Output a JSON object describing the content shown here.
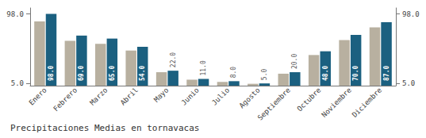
{
  "chart_data": {
    "type": "bar",
    "title": "Precipitaciones Medias en tornavacas",
    "categories": [
      "Enero",
      "Febrero",
      "Marzo",
      "Abril",
      "Mayo",
      "Junio",
      "Julio",
      "Agosto",
      "Septiembre",
      "Octubre",
      "Noviembre",
      "Diciembre"
    ],
    "series": [
      {
        "color": "#b8b0a0",
        "values": [
          88.0,
          62.0,
          58.0,
          49.0,
          20.0,
          10.0,
          7.0,
          4.5,
          18.0,
          43.0,
          63.0,
          80.0
        ]
      },
      {
        "color": "#1b6080",
        "values": [
          98.0,
          69.0,
          65.0,
          54.0,
          22.0,
          11.0,
          8.0,
          5.0,
          20.0,
          48.0,
          70.0,
          87.0
        ],
        "data_labels": true,
        "value_labels": [
          "98.0",
          "69.0",
          "65.0",
          "54.0",
          "22.0",
          "11.0",
          "8.0",
          "5.0",
          "20.0",
          "48.0",
          "70.0",
          "87.0"
        ]
      }
    ],
    "ylim": [
      2.0,
      106.0
    ],
    "yticks": [
      {
        "value": 5.0,
        "label": "5.0"
      },
      {
        "value": 98.0,
        "label": "98.0"
      }
    ],
    "y2lim": [
      2.0,
      106.0
    ],
    "y2ticks": [
      {
        "value": 5.0,
        "label": "5.0"
      },
      {
        "value": 98.0,
        "label": "98.0"
      }
    ],
    "grid": false
  }
}
